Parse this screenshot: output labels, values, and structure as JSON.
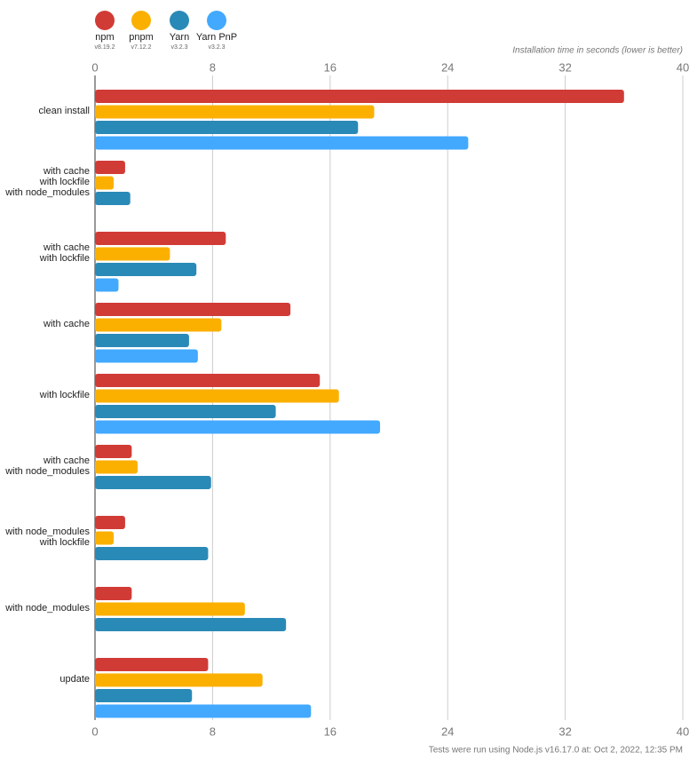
{
  "chart_data": {
    "type": "bar",
    "orientation": "horizontal",
    "x_label": "Installation time in seconds (lower is better)",
    "footnote": "Tests were run using Node.js v16.17.0 at: Oct 2, 2022, 12:35 PM",
    "categories": [
      [
        "clean install"
      ],
      [
        "with cache",
        "with lockfile",
        "with node_modules"
      ],
      [
        "with cache",
        "with lockfile"
      ],
      [
        "with cache"
      ],
      [
        "with lockfile"
      ],
      [
        "with cache",
        "with node_modules"
      ],
      [
        "with node_modules",
        "with lockfile"
      ],
      [
        "with node_modules"
      ],
      [
        "update"
      ]
    ],
    "series": [
      {
        "name": "npm",
        "version": "v8.19.2",
        "color": "#d13b36",
        "values": [
          36.0,
          2.05,
          8.9,
          13.3,
          15.3,
          2.5,
          2.05,
          2.5,
          7.7
        ]
      },
      {
        "name": "pnpm",
        "version": "v7.12.2",
        "color": "#fbb000",
        "values": [
          19.0,
          1.27,
          5.1,
          8.6,
          16.6,
          2.9,
          1.27,
          10.2,
          11.4
        ]
      },
      {
        "name": "Yarn",
        "version": "v3.2.3",
        "color": "#2a8ab7",
        "values": [
          17.9,
          2.4,
          6.9,
          6.4,
          12.3,
          7.9,
          7.7,
          13.0,
          6.6
        ]
      },
      {
        "name": "Yarn PnP",
        "version": "v3.2.3",
        "color": "#42a9ff",
        "values": [
          25.4,
          null,
          1.6,
          7.0,
          19.4,
          null,
          null,
          null,
          14.7
        ]
      }
    ],
    "xlim": [
      0,
      40
    ],
    "xticks": [
      0,
      8,
      16,
      24,
      32,
      40
    ],
    "grid": true
  }
}
